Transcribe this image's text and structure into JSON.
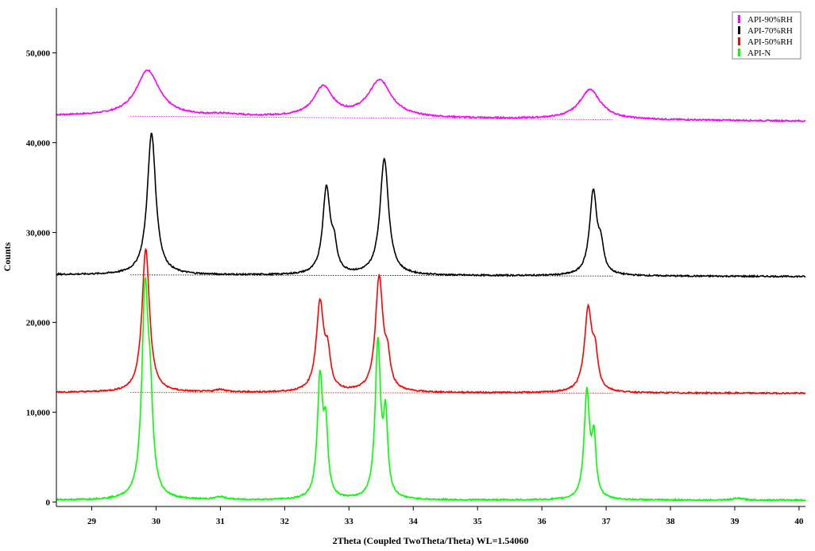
{
  "chart_data": {
    "type": "line",
    "title": "",
    "xlabel": "2Theta (Coupled TwoTheta/Theta) WL=1.54060",
    "ylabel": "Counts",
    "xlim": [
      28.45,
      40.1
    ],
    "ylim": [
      -500,
      55000
    ],
    "x_ticks": [
      29,
      30,
      31,
      32,
      33,
      34,
      35,
      36,
      37,
      38,
      39,
      40
    ],
    "y_ticks": [
      0,
      10000,
      20000,
      30000,
      40000,
      50000
    ],
    "y_tick_labels": [
      "0",
      "10,000",
      "20,000",
      "30,000",
      "40,000",
      "50,000"
    ],
    "grid": false,
    "legend_position": "top-right",
    "series": [
      {
        "name": "API-90%RH",
        "color": "#ff00ff",
        "baseline": [
          43000,
          42400
        ],
        "peaks": [
          [
            29.87,
            5100,
            0.22
          ],
          [
            32.6,
            3300,
            0.18
          ],
          [
            33.48,
            4100,
            0.22
          ],
          [
            36.75,
            3300,
            0.2
          ],
          [
            31.05,
            200,
            0.3
          ]
        ]
      },
      {
        "name": "API-70%RH",
        "color": "#000000",
        "baseline": [
          25300,
          25100
        ],
        "peaks": [
          [
            29.93,
            15800,
            0.08
          ],
          [
            32.65,
            9600,
            0.07
          ],
          [
            32.77,
            2500,
            0.05
          ],
          [
            33.55,
            13000,
            0.08
          ],
          [
            36.8,
            9300,
            0.07
          ],
          [
            36.92,
            2500,
            0.05
          ]
        ]
      },
      {
        "name": "API-50%RH",
        "color": "#ff0000",
        "baseline": [
          12200,
          12100
        ],
        "peaks": [
          [
            29.84,
            16000,
            0.07
          ],
          [
            32.55,
            9800,
            0.07
          ],
          [
            32.67,
            3500,
            0.05
          ],
          [
            33.47,
            12700,
            0.07
          ],
          [
            33.6,
            3000,
            0.05
          ],
          [
            36.72,
            9100,
            0.07
          ],
          [
            36.83,
            3500,
            0.05
          ],
          [
            31.0,
            300,
            0.1
          ]
        ]
      },
      {
        "name": "API-N",
        "color": "#00ff00",
        "baseline": [
          200,
          200
        ],
        "peaks": [
          [
            29.83,
            22500,
            0.06
          ],
          [
            29.91,
            8000,
            0.05
          ],
          [
            32.55,
            13300,
            0.05
          ],
          [
            32.64,
            7000,
            0.04
          ],
          [
            33.45,
            17300,
            0.05
          ],
          [
            33.57,
            8500,
            0.04
          ],
          [
            36.7,
            11800,
            0.05
          ],
          [
            36.81,
            6300,
            0.04
          ],
          [
            31.0,
            300,
            0.1
          ],
          [
            39.05,
            200,
            0.1
          ]
        ]
      }
    ]
  }
}
